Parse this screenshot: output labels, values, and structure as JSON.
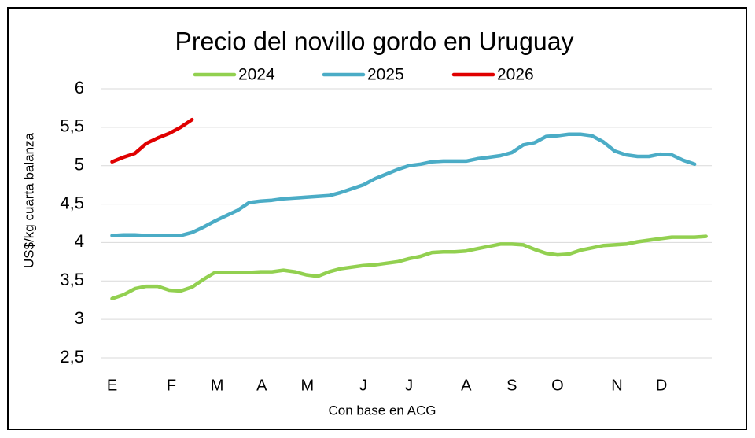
{
  "chart_data": {
    "type": "line",
    "title": "Precio del novillo gordo en Uruguay",
    "x_label": "Con base en ACG",
    "y_label": "US$/kg cuarta balanza",
    "x": [
      0,
      1,
      2,
      3,
      4,
      5,
      6,
      7,
      8,
      9,
      10,
      11,
      12,
      13,
      14,
      15,
      16,
      17,
      18,
      19,
      20,
      21,
      22,
      23,
      24,
      25,
      26,
      27,
      28,
      29,
      30,
      31,
      32,
      33,
      34,
      35,
      36,
      37,
      38,
      39,
      40,
      41,
      42,
      43,
      44,
      45,
      46,
      47,
      48,
      49,
      50,
      51,
      52
    ],
    "xlim": [
      -1,
      52.5
    ],
    "xticks": [
      {
        "value": 0,
        "label": "E"
      },
      {
        "value": 5.2,
        "label": "F"
      },
      {
        "value": 9.2,
        "label": "M"
      },
      {
        "value": 13.1,
        "label": "A"
      },
      {
        "value": 17.1,
        "label": "M"
      },
      {
        "value": 22,
        "label": "J"
      },
      {
        "value": 26,
        "label": "J"
      },
      {
        "value": 31,
        "label": "A"
      },
      {
        "value": 35,
        "label": "S"
      },
      {
        "value": 39,
        "label": "O"
      },
      {
        "value": 44.2,
        "label": "N"
      },
      {
        "value": 48.1,
        "label": "D"
      }
    ],
    "ylim": [
      2.5,
      6
    ],
    "yticks": [
      {
        "value": 2.5,
        "label": "2,5"
      },
      3,
      {
        "value": 3.5,
        "label": "3,5"
      },
      4,
      {
        "value": 4.5,
        "label": "4,5"
      },
      5,
      {
        "value": 5.5,
        "label": "5,5"
      },
      6
    ],
    "grid": true,
    "legend": "top",
    "series": [
      {
        "name": "2024",
        "color": "#92d050",
        "values": [
          3.27,
          3.32,
          3.4,
          3.43,
          3.43,
          3.38,
          3.37,
          3.42,
          3.52,
          3.61,
          3.61,
          3.61,
          3.61,
          3.62,
          3.62,
          3.64,
          3.62,
          3.58,
          3.56,
          3.62,
          3.66,
          3.68,
          3.7,
          3.71,
          3.73,
          3.75,
          3.79,
          3.82,
          3.87,
          3.88,
          3.88,
          3.89,
          3.92,
          3.95,
          3.98,
          3.98,
          3.97,
          3.91,
          3.86,
          3.84,
          3.85,
          3.9,
          3.93,
          3.96,
          3.97,
          3.98,
          4.01,
          4.03,
          4.05,
          4.07,
          4.07,
          4.07,
          4.08
        ]
      },
      {
        "name": "2025",
        "color": "#4bacc6",
        "values": [
          4.09,
          4.1,
          4.1,
          4.09,
          4.09,
          4.09,
          4.09,
          4.13,
          4.2,
          4.28,
          4.35,
          4.42,
          4.52,
          4.54,
          4.55,
          4.57,
          4.58,
          4.59,
          4.6,
          4.61,
          4.65,
          4.7,
          4.75,
          4.83,
          4.89,
          4.95,
          5.0,
          5.02,
          5.05,
          5.06,
          5.06,
          5.06,
          5.09,
          5.11,
          5.13,
          5.17,
          5.27,
          5.3,
          5.38,
          5.39,
          5.41,
          5.41,
          5.39,
          5.31,
          5.19,
          5.14,
          5.12,
          5.12,
          5.15,
          5.14,
          5.07,
          5.02,
          null
        ]
      },
      {
        "name": "2026",
        "color": "#e00000",
        "values": [
          5.05,
          5.11,
          5.16,
          5.29,
          5.36,
          5.42,
          5.5,
          5.6,
          null,
          null,
          null,
          null,
          null,
          null,
          null,
          null,
          null,
          null,
          null,
          null,
          null,
          null,
          null,
          null,
          null,
          null,
          null,
          null,
          null,
          null,
          null,
          null,
          null,
          null,
          null,
          null,
          null,
          null,
          null,
          null,
          null,
          null,
          null,
          null,
          null,
          null,
          null,
          null,
          null,
          null,
          null,
          null,
          null
        ]
      }
    ]
  }
}
